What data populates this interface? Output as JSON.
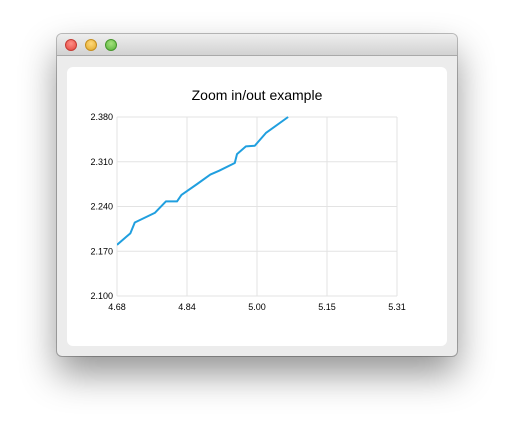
{
  "window": {
    "close_color": "#e3463e",
    "minimize_color": "#e0a82a",
    "maximize_color": "#58b13a"
  },
  "chart_data": {
    "type": "line",
    "title": "Zoom in/out example",
    "xlabel": "",
    "ylabel": "",
    "xlim": [
      4.68,
      5.31
    ],
    "ylim": [
      2.1,
      2.38
    ],
    "x_ticks": [
      "4.68",
      "4.84",
      "5.00",
      "5.15",
      "5.31"
    ],
    "y_ticks": [
      "2.380",
      "2.310",
      "2.240",
      "2.170",
      "2.100"
    ],
    "grid": true,
    "legend": "none",
    "line_color": "#209fdf",
    "series": [
      {
        "x": [
          4.68,
          4.71,
          4.72,
          4.765,
          4.79,
          4.815,
          4.825,
          4.86,
          4.89,
          4.91,
          4.945,
          4.95,
          4.97,
          4.99,
          5.015,
          5.065
        ],
        "values": [
          2.18,
          2.198,
          2.215,
          2.23,
          2.248,
          2.248,
          2.258,
          2.275,
          2.29,
          2.296,
          2.308,
          2.322,
          2.334,
          2.335,
          2.355,
          2.38
        ]
      }
    ]
  }
}
